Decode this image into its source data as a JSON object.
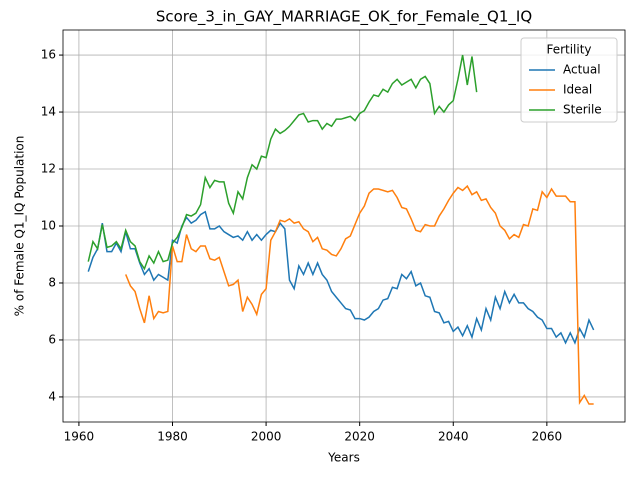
{
  "chart_data": {
    "type": "line",
    "title": "Score_3_in_GAY_MARRIAGE_OK_for_Female_Q1_IQ",
    "xlabel": "Years",
    "ylabel": "% of Female Q1_IQ Population",
    "legend_title": "Fertility",
    "legend_loc": "upper right",
    "grid": true,
    "xlim": [
      1956.6,
      2076.7
    ],
    "ylim": [
      3.12,
      16.88
    ],
    "xticks": [
      1960,
      1980,
      2000,
      2020,
      2040,
      2060
    ],
    "yticks": [
      4,
      6,
      8,
      10,
      12,
      14,
      16
    ],
    "x": [
      1962,
      1963,
      1964,
      1965,
      1966,
      1967,
      1968,
      1969,
      1970,
      1971,
      1972,
      1973,
      1974,
      1975,
      1976,
      1977,
      1978,
      1979,
      1980,
      1981,
      1982,
      1983,
      1984,
      1985,
      1986,
      1987,
      1988,
      1989,
      1990,
      1991,
      1992,
      1993,
      1994,
      1995,
      1996,
      1997,
      1998,
      1999,
      2000,
      2001,
      2002,
      2003,
      2004,
      2005,
      2006,
      2007,
      2008,
      2009,
      2010,
      2011,
      2012,
      2013,
      2014,
      2015,
      2016,
      2017,
      2018,
      2019,
      2020,
      2021,
      2022,
      2023,
      2024,
      2025,
      2026,
      2027,
      2028,
      2029,
      2030,
      2031,
      2032,
      2033,
      2034,
      2035,
      2036,
      2037,
      2038,
      2039,
      2040,
      2041,
      2042,
      2043,
      2044,
      2045,
      2046,
      2047,
      2048,
      2049,
      2050,
      2051,
      2052,
      2053,
      2054,
      2055,
      2056,
      2057,
      2058,
      2059,
      2060,
      2061,
      2062,
      2063,
      2064,
      2065,
      2066,
      2067,
      2068,
      2069,
      2070
    ],
    "series": [
      {
        "name": "Actual",
        "color": "#1f77b4",
        "values": [
          8.4,
          8.9,
          9.2,
          10.1,
          9.1,
          9.1,
          9.4,
          9.1,
          9.8,
          9.2,
          9.2,
          8.7,
          8.3,
          8.5,
          8.1,
          8.3,
          8.2,
          8.1,
          9.5,
          9.4,
          10.0,
          10.3,
          10.1,
          10.2,
          10.4,
          10.5,
          9.9,
          9.9,
          10.0,
          9.8,
          9.7,
          9.6,
          9.65,
          9.5,
          9.8,
          9.5,
          9.7,
          9.5,
          9.7,
          9.85,
          9.8,
          10.1,
          9.9,
          8.1,
          7.8,
          8.6,
          8.3,
          8.7,
          8.3,
          8.7,
          8.3,
          8.1,
          7.7,
          7.5,
          7.3,
          7.1,
          7.05,
          6.75,
          6.75,
          6.7,
          6.8,
          7.0,
          7.1,
          7.4,
          7.45,
          7.85,
          7.8,
          8.3,
          8.15,
          8.4,
          7.9,
          8.0,
          7.55,
          7.5,
          7.0,
          6.95,
          6.6,
          6.65,
          6.3,
          6.45,
          6.15,
          6.5,
          6.1,
          6.75,
          6.35,
          7.1,
          6.7,
          7.5,
          7.1,
          7.7,
          7.3,
          7.6,
          7.3,
          7.3,
          7.1,
          7.0,
          6.8,
          6.7,
          6.4,
          6.4,
          6.1,
          6.25,
          5.9,
          6.25,
          5.9,
          6.4,
          6.1,
          6.7,
          6.35
        ]
      },
      {
        "name": "Ideal",
        "color": "#ff7f0e",
        "values": [
          null,
          null,
          null,
          null,
          null,
          null,
          null,
          null,
          8.3,
          7.9,
          7.7,
          7.1,
          6.6,
          7.55,
          6.75,
          7.0,
          6.95,
          7.0,
          9.3,
          8.75,
          8.75,
          9.7,
          9.2,
          9.1,
          9.3,
          9.3,
          8.85,
          8.8,
          8.9,
          8.4,
          7.9,
          7.95,
          8.1,
          7.0,
          7.5,
          7.25,
          6.9,
          7.6,
          7.8,
          9.5,
          9.8,
          10.2,
          10.15,
          10.25,
          10.1,
          10.15,
          9.9,
          9.8,
          9.45,
          9.6,
          9.2,
          9.15,
          9.0,
          8.95,
          9.2,
          9.55,
          9.65,
          10.05,
          10.45,
          10.7,
          11.15,
          11.3,
          11.3,
          11.25,
          11.2,
          11.25,
          11.0,
          10.65,
          10.6,
          10.25,
          9.85,
          9.8,
          10.05,
          10.0,
          10.0,
          10.35,
          10.6,
          10.9,
          11.15,
          11.35,
          11.25,
          11.4,
          11.1,
          11.2,
          10.9,
          10.95,
          10.65,
          10.45,
          10.0,
          9.85,
          9.55,
          9.7,
          9.6,
          10.05,
          10.0,
          10.6,
          10.55,
          11.2,
          11.0,
          11.3,
          11.05,
          11.05,
          11.05,
          10.85,
          10.85,
          3.8,
          4.05,
          3.75,
          3.75
        ]
      },
      {
        "name": "Sterile",
        "color": "#2ca02c",
        "values": [
          8.75,
          9.45,
          9.2,
          10.05,
          9.25,
          9.3,
          9.45,
          9.2,
          9.85,
          9.45,
          9.3,
          8.75,
          8.5,
          8.95,
          8.7,
          9.1,
          8.75,
          8.8,
          9.4,
          9.6,
          9.95,
          10.4,
          10.35,
          10.45,
          10.75,
          11.7,
          11.35,
          11.6,
          11.55,
          11.55,
          10.8,
          10.45,
          11.2,
          10.95,
          11.7,
          12.15,
          12.0,
          12.45,
          12.4,
          13.05,
          13.4,
          13.25,
          13.35,
          13.5,
          13.7,
          13.9,
          13.95,
          13.65,
          13.7,
          13.7,
          13.4,
          13.6,
          13.5,
          13.75,
          13.75,
          13.8,
          13.85,
          13.7,
          13.95,
          14.05,
          14.35,
          14.6,
          14.55,
          14.8,
          14.7,
          15.0,
          15.15,
          14.95,
          15.05,
          15.15,
          14.85,
          15.15,
          15.25,
          15.0,
          13.95,
          14.2,
          14.0,
          14.25,
          14.4,
          15.15,
          16.0,
          14.95,
          15.95,
          14.7,
          null,
          null,
          null,
          null,
          null,
          null,
          null,
          null,
          null,
          null,
          null,
          null,
          null,
          null,
          null,
          null,
          null,
          null,
          null,
          null,
          null,
          null,
          null,
          null,
          null
        ]
      }
    ]
  }
}
